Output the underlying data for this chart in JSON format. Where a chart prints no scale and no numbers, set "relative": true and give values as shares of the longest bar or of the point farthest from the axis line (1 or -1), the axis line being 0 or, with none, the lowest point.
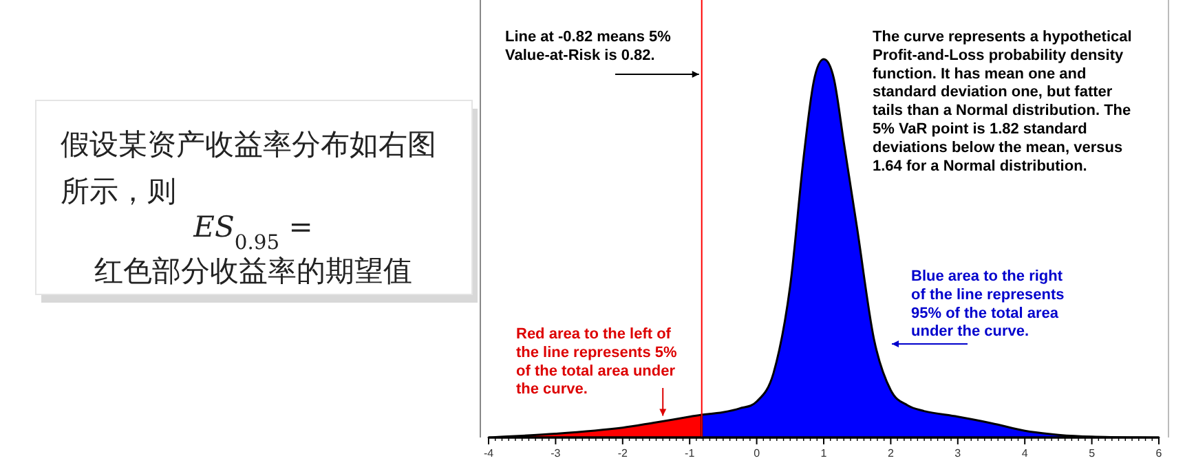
{
  "chart_data": [
    {
      "type": "other",
      "annotations": [
        "假设某资产收益率分布如右图所示，则",
        "ES$_{0.95}$ =",
        "红色部分收益率的期望值"
      ]
    },
    {
      "type": "area",
      "relative": true,
      "xlim": [
        -4,
        6
      ],
      "xticks": [
        -4,
        -3,
        -2,
        -1,
        0,
        1,
        2,
        3,
        4,
        5,
        6
      ],
      "series": [
        {
          "color": "#ff0000",
          "x": [
            -4,
            -3,
            -2,
            -1.5,
            -1,
            -0.82
          ],
          "values": [
            0,
            0.01,
            0.026,
            0.04,
            0.055,
            0.06
          ]
        },
        {
          "color": "#0000ff",
          "x": [
            -0.82,
            -0.5,
            -0.25,
            0,
            0.25,
            0.5,
            0.7,
            0.85,
            1,
            1.15,
            1.3,
            1.5,
            1.75,
            2,
            2.25,
            2.5,
            3,
            3.5,
            4,
            4.5,
            5,
            6
          ],
          "values": [
            0.06,
            0.067,
            0.077,
            0.095,
            0.17,
            0.4,
            0.74,
            0.94,
            1,
            0.95,
            0.78,
            0.55,
            0.26,
            0.125,
            0.085,
            0.07,
            0.055,
            0.038,
            0.018,
            0.007,
            0.002,
            0
          ]
        }
      ],
      "ref_lines": [
        {
          "axis": "x",
          "value": -0.82,
          "color": "#ff0000"
        }
      ],
      "annotations": [
        {
          "text": "Line at -0.82 means 5% Value-at-Risk is 0.82.",
          "x": -0.82,
          "y": 0.96
        },
        "The curve represents a hypothetical Profit-and-Loss probability density function. It has mean one and standard deviation one, but fatter tails than a Normal distribution. The 5% VaR point is 1.82 standard deviations below the mean, versus 1.64 for a Normal distribution.",
        "Blue area to the right of the line represents 95% of the total area under the curve.",
        {
          "text": "Red area to the left of the line represents 5% of the total area under the curve.",
          "x": -1.4,
          "y": 0.05
        }
      ]
    }
  ]
}
